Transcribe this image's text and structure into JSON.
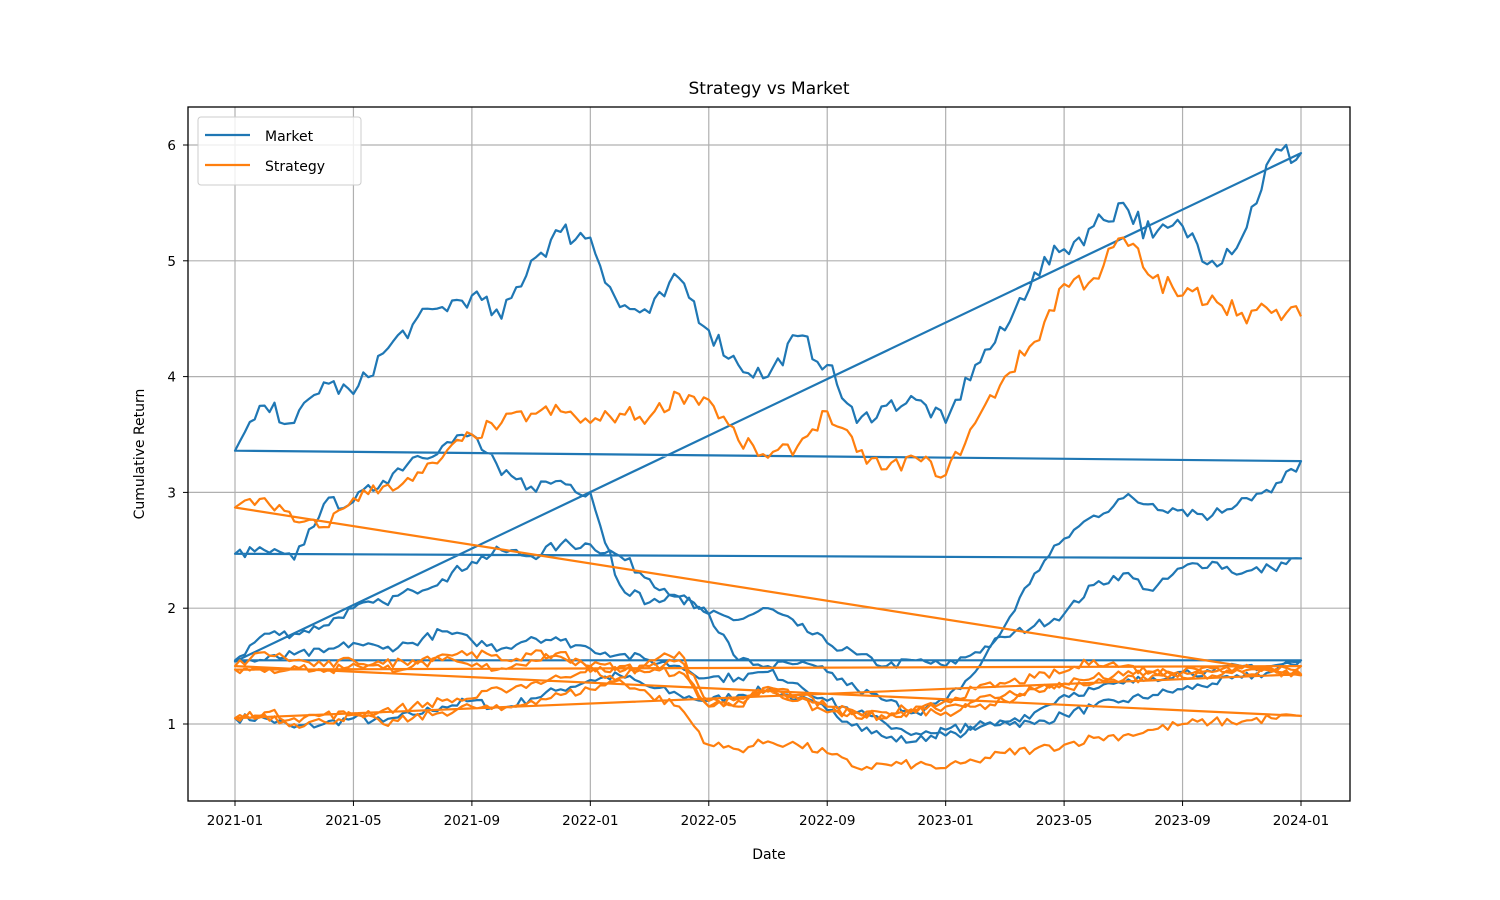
{
  "chart_data": {
    "type": "line",
    "title": "Strategy vs Market",
    "xlabel": "Date",
    "ylabel": "Cumulative Return",
    "xlim": [
      "2020-12",
      "2024-02"
    ],
    "ylim": [
      0.35,
      6.3
    ],
    "grid": true,
    "legend_position": "top-left",
    "x_ticks": [
      "2021-01",
      "2021-05",
      "2021-09",
      "2022-01",
      "2022-05",
      "2022-09",
      "2023-01",
      "2023-05",
      "2023-09",
      "2024-01"
    ],
    "y_ticks": [
      "1",
      "2",
      "3",
      "4",
      "5",
      "6"
    ],
    "x_note": "x values are months since 2021-01 (0 = 2021-01, 36 = 2024-01); each series is several concatenated paths, values sampled approximately monthly",
    "series": [
      {
        "name": "Market",
        "color": "#1f77b4",
        "paths": [
          [
            1.05,
            1.05,
            0.97,
            1.0,
            1.05,
            1.02,
            1.08,
            1.15,
            1.2,
            1.13,
            1.22,
            1.3,
            1.38,
            1.42,
            1.32,
            1.25,
            1.2,
            1.25,
            1.3,
            1.22,
            1.12,
            1.0,
            0.88,
            0.85,
            0.95,
            0.98,
            1.02,
            1.0,
            1.08,
            1.15,
            1.2,
            1.25,
            1.3,
            1.35,
            1.4,
            1.45,
            1.55
          ],
          [
            1.55,
            1.78,
            1.78,
            1.85,
            2.0,
            2.05,
            2.15,
            2.25,
            2.4,
            2.5,
            2.45,
            2.55,
            2.55,
            2.45,
            2.25,
            2.1,
            1.95,
            1.9,
            2.0,
            1.85,
            1.7,
            1.6,
            1.5,
            1.55,
            1.5,
            1.62,
            1.75,
            1.85,
            1.95,
            2.2,
            2.3,
            2.15,
            2.35,
            2.4,
            2.3,
            2.35,
            2.43
          ],
          [
            2.47,
            2.5,
            2.42,
            2.9,
            2.92,
            3.1,
            3.3,
            3.4,
            3.5,
            3.15,
            3.05,
            3.1,
            3.0,
            2.2,
            2.05,
            2.1,
            1.95,
            1.55,
            1.5,
            1.52,
            1.45,
            1.3,
            1.2,
            1.1,
            1.2,
            1.45,
            1.85,
            2.3,
            2.6,
            2.8,
            2.95,
            2.9,
            2.85,
            2.8,
            2.95,
            3.0,
            3.27
          ],
          [
            3.36,
            3.75,
            3.6,
            3.95,
            3.85,
            4.2,
            4.45,
            4.6,
            4.7,
            4.5,
            5.0,
            5.25,
            5.2,
            4.6,
            4.55,
            4.85,
            4.4,
            4.1,
            4.0,
            4.35,
            4.1,
            3.6,
            3.75,
            3.8,
            3.6,
            4.1,
            4.4,
            4.9,
            5.1,
            5.3,
            5.5,
            5.2,
            5.3,
            5.0,
            5.2,
            5.9,
            5.93
          ],
          [
            1.54,
            1.55,
            1.6,
            1.62,
            1.7,
            1.65,
            1.7,
            1.8,
            1.72,
            1.65,
            1.75,
            1.72,
            1.65,
            1.6,
            1.55,
            1.5,
            1.4,
            1.4,
            1.45,
            1.35,
            1.2,
            1.1,
            1.0,
            0.92,
            0.9,
            0.95,
            1.02,
            1.1,
            1.25,
            1.3,
            1.35,
            1.4,
            1.45,
            1.45,
            1.5,
            1.5,
            1.54
          ]
        ]
      },
      {
        "name": "Strategy",
        "color": "#ff7f0e",
        "paths": [
          [
            1.05,
            1.1,
            1.05,
            1.08,
            1.08,
            1.12,
            1.15,
            1.2,
            1.22,
            1.3,
            1.35,
            1.4,
            1.5,
            1.5,
            1.45,
            1.45,
            1.15,
            1.2,
            1.28,
            1.22,
            1.15,
            1.1,
            1.05,
            1.12,
            1.1,
            1.15,
            1.2,
            1.3,
            1.32,
            1.35,
            1.38,
            1.42,
            1.45,
            1.45,
            1.48,
            1.45,
            1.43
          ],
          [
            1.05,
            1.08,
            1.0,
            1.02,
            1.08,
            1.0,
            1.05,
            1.1,
            1.15,
            1.12,
            1.2,
            1.25,
            1.3,
            1.38,
            1.25,
            1.15,
            0.82,
            0.78,
            0.85,
            0.82,
            0.75,
            0.62,
            0.65,
            0.65,
            0.62,
            0.68,
            0.75,
            0.78,
            0.82,
            0.88,
            0.9,
            0.95,
            1.0,
            1.02,
            1.02,
            1.05,
            1.07
          ],
          [
            1.5,
            1.62,
            1.55,
            1.5,
            1.55,
            1.52,
            1.55,
            1.6,
            1.62,
            1.55,
            1.6,
            1.58,
            1.5,
            1.45,
            1.5,
            1.55,
            1.15,
            1.22,
            1.3,
            1.2,
            1.1,
            1.1,
            1.05,
            1.1,
            1.2,
            1.3,
            1.35,
            1.4,
            1.45,
            1.55,
            1.5,
            1.45,
            1.45,
            1.48,
            1.45,
            1.48,
            1.5
          ],
          [
            1.47,
            1.45,
            1.5,
            1.45,
            1.52,
            1.48,
            1.5,
            1.55,
            1.5,
            1.48,
            1.55,
            1.62,
            1.45,
            1.4,
            1.55,
            1.62,
            1.2,
            1.15,
            1.32,
            1.25,
            1.15,
            1.05,
            1.1,
            1.15,
            1.15,
            1.2,
            1.25,
            1.3,
            1.35,
            1.4,
            1.42,
            1.45,
            1.4,
            1.42,
            1.45,
            1.48,
            1.42
          ],
          [
            2.87,
            2.95,
            2.75,
            2.7,
            2.95,
            3.05,
            3.1,
            3.3,
            3.5,
            3.6,
            3.68,
            3.7,
            3.6,
            3.68,
            3.65,
            3.85,
            3.8,
            3.45,
            3.3,
            3.4,
            3.7,
            3.35,
            3.2,
            3.3,
            3.15,
            3.6,
            4.0,
            4.3,
            4.8,
            4.85,
            5.2,
            4.85,
            4.7,
            4.7,
            4.55,
            4.55,
            4.52
          ]
        ],
        "closing_values_at_path_restart": [
          2.8
        ]
      }
    ],
    "legend": [
      {
        "label": "Market",
        "color": "#1f77b4"
      },
      {
        "label": "Strategy",
        "color": "#ff7f0e"
      }
    ]
  }
}
